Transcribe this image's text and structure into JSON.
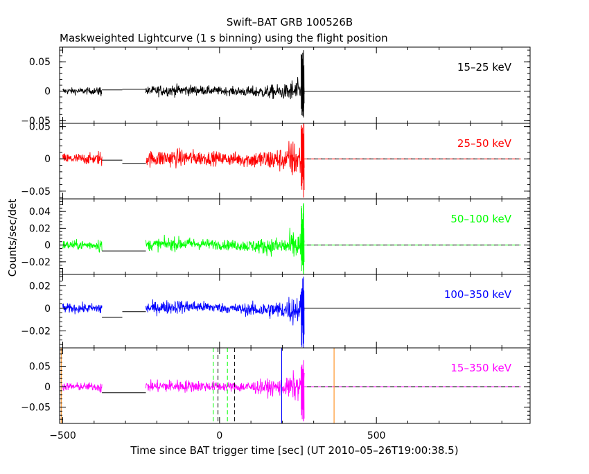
{
  "title": "Swift–BAT GRB 100526B",
  "subtitle": "Maskweighted Lightcurve (1 s binning) using the flight position",
  "xlabel": "Time since BAT trigger time [sec] (UT 2010–05–26T19:00:38.5)",
  "ylabel": "Counts/sec/det",
  "colors": {
    "axis": "#000000",
    "band_15_25": "#000000",
    "band_25_50": "#ff0000",
    "band_50_100": "#00ff00",
    "band_100_350": "#0000ff",
    "band_15_350": "#ff00ff",
    "marker_orange": "#ff8000",
    "marker_blue": "#0000ff",
    "marker_green": "#00ff00",
    "marker_black": "#000000"
  },
  "chart_data": [
    {
      "type": "line",
      "band_label": "15–25 keV",
      "color": "#000000",
      "xlim": [
        -510,
        990
      ],
      "ylim": [
        -0.055,
        0.075
      ],
      "yticks": [
        -0.05,
        0,
        0.05
      ],
      "ytick_labels": [
        "−0.05",
        "0",
        "0.05"
      ],
      "segments": [
        {
          "x0": -500,
          "x1": -375,
          "amp": 0.008
        },
        {
          "x0": -375,
          "x1": -310,
          "flat": 0.002
        },
        {
          "x0": -310,
          "x1": -235,
          "flat": 0.003
        },
        {
          "x0": -235,
          "x1": 270,
          "amp": 0.011,
          "rise": 0.5
        },
        {
          "x0": 270,
          "x1": 960,
          "flat": 0
        }
      ],
      "spike": {
        "x": 268,
        "low": -0.045,
        "high": 0.07
      }
    },
    {
      "type": "line",
      "band_label": "25–50 keV",
      "color": "#ff0000",
      "xlim": [
        -510,
        990
      ],
      "ylim": [
        -0.062,
        0.055
      ],
      "yticks": [
        -0.05,
        0,
        0.05
      ],
      "ytick_labels": [
        "−0.05",
        "0",
        "0.05"
      ],
      "segments": [
        {
          "x0": -500,
          "x1": -375,
          "amp": 0.012
        },
        {
          "x0": -375,
          "x1": -310,
          "flat": -0.002
        },
        {
          "x0": -310,
          "x1": -235,
          "flat": -0.007
        },
        {
          "x0": -235,
          "x1": 270,
          "amp": 0.016,
          "rise": 0.5
        },
        {
          "x0": 270,
          "x1": 960,
          "flat": 0,
          "dashed": true
        }
      ],
      "spike": {
        "x": 268,
        "low": -0.06,
        "high": 0.055
      }
    },
    {
      "type": "line",
      "band_label": "50–100 keV",
      "color": "#00ff00",
      "xlim": [
        -510,
        990
      ],
      "ylim": [
        -0.035,
        0.055
      ],
      "yticks": [
        -0.02,
        0,
        0.02,
        0.04
      ],
      "ytick_labels": [
        "−0.02",
        "0",
        "0.02",
        "0.04"
      ],
      "segments": [
        {
          "x0": -500,
          "x1": -375,
          "amp": 0.008
        },
        {
          "x0": -375,
          "x1": -235,
          "flat": -0.007
        },
        {
          "x0": -235,
          "x1": 270,
          "amp": 0.009,
          "rise": 0.6
        },
        {
          "x0": 270,
          "x1": 960,
          "flat": 0,
          "dashed": true
        }
      ],
      "spike": {
        "x": 268,
        "low": -0.035,
        "high": 0.05
      }
    },
    {
      "type": "line",
      "band_label": "100–350 keV",
      "color": "#0000ff",
      "xlim": [
        -510,
        990
      ],
      "ylim": [
        -0.035,
        0.03
      ],
      "yticks": [
        -0.02,
        0,
        0.02
      ],
      "ytick_labels": [
        "−0.02",
        "0",
        "0.02"
      ],
      "segments": [
        {
          "x0": -500,
          "x1": -375,
          "amp": 0.006
        },
        {
          "x0": -375,
          "x1": -310,
          "flat": -0.008
        },
        {
          "x0": -310,
          "x1": -235,
          "flat": -0.003
        },
        {
          "x0": -235,
          "x1": 270,
          "amp": 0.007,
          "rise": 0.5
        },
        {
          "x0": 270,
          "x1": 960,
          "flat": 0
        }
      ],
      "spike": {
        "x": 268,
        "low": -0.035,
        "high": 0.028
      }
    },
    {
      "type": "line",
      "band_label": "15–350 keV",
      "color": "#ff00ff",
      "xlim": [
        -510,
        990
      ],
      "ylim": [
        -0.09,
        0.095
      ],
      "yticks": [
        -0.05,
        0,
        0.05
      ],
      "ytick_labels": [
        "−0.05",
        "0",
        "0.05"
      ],
      "xticks": [
        -500,
        0,
        500
      ],
      "xtick_labels": [
        "−500",
        "0",
        "500"
      ],
      "segments": [
        {
          "x0": -500,
          "x1": -375,
          "amp": 0.014
        },
        {
          "x0": -375,
          "x1": -235,
          "flat": -0.015
        },
        {
          "x0": -235,
          "x1": 270,
          "amp": 0.018,
          "rise": 0.5
        },
        {
          "x0": 270,
          "x1": 960,
          "flat": 0,
          "dashed": true
        }
      ],
      "spike": {
        "x": 268,
        "low": -0.085,
        "high": 0.065
      },
      "markers": [
        {
          "x": -505,
          "color": "#ff8000",
          "style": "solid"
        },
        {
          "x": 365,
          "color": "#ff8000",
          "style": "solid"
        },
        {
          "x": 198,
          "color": "#0000ff",
          "style": "solid"
        },
        {
          "x": -20,
          "color": "#00ff00",
          "style": "dashed"
        },
        {
          "x": 25,
          "color": "#00ff00",
          "style": "dashed"
        },
        {
          "x": -5,
          "color": "#000000",
          "style": "dashed"
        },
        {
          "x": 48,
          "color": "#000000",
          "style": "dashed"
        }
      ]
    }
  ]
}
